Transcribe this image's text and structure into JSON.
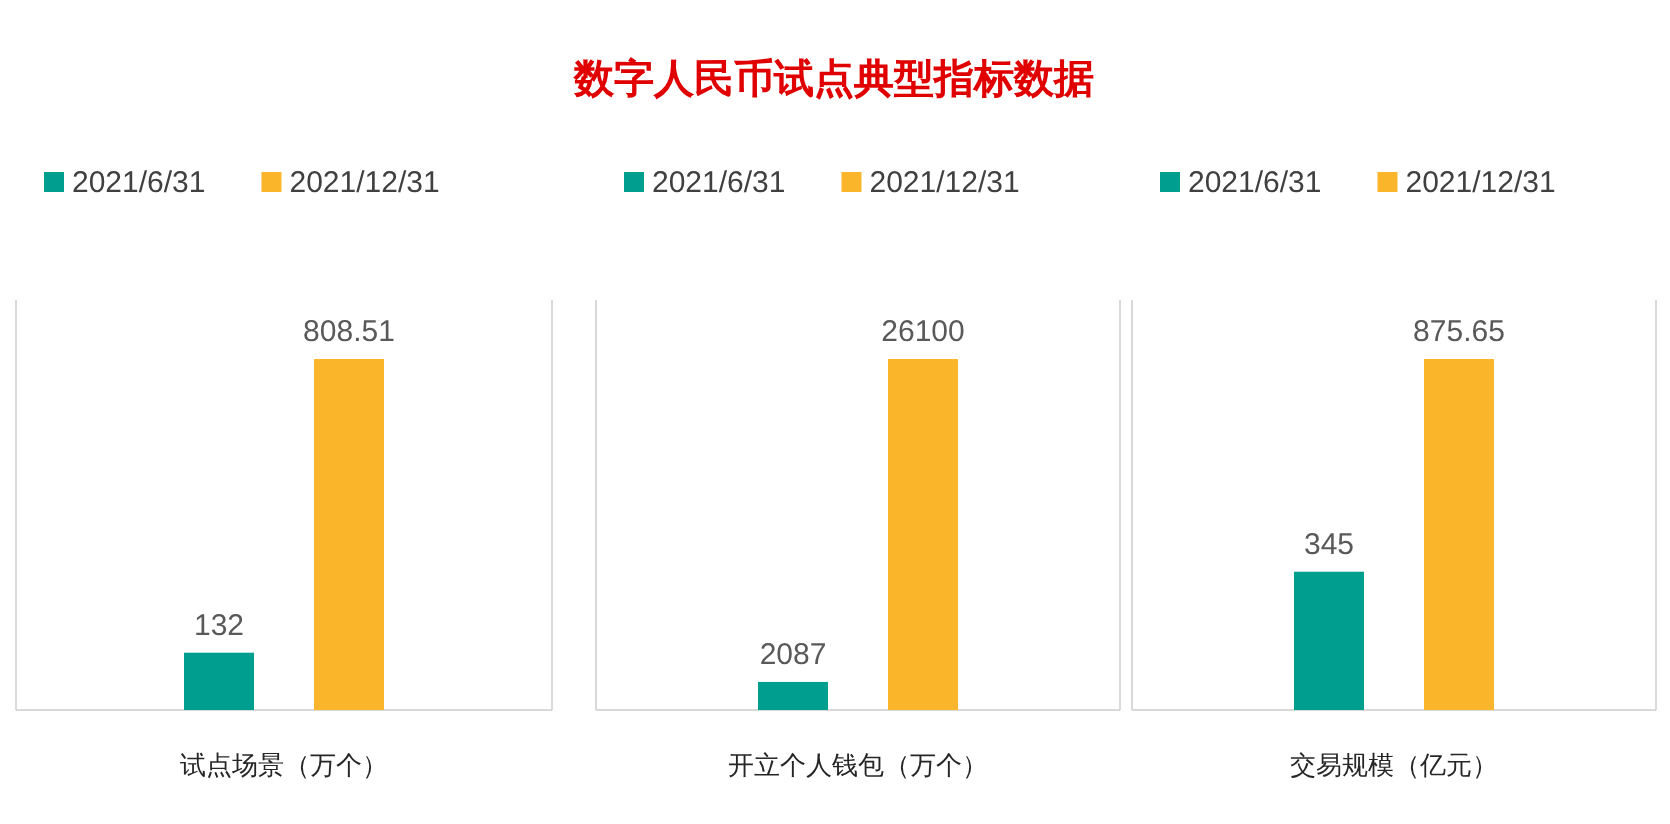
{
  "chart_data": [
    {
      "type": "bar",
      "categories": [
        "试点场景（万个）"
      ],
      "legend": "top",
      "data_labels": true,
      "series": [
        {
          "name": "2021/6/31",
          "color": "#009e8f",
          "values": [
            132
          ]
        },
        {
          "name": "2021/12/31",
          "color": "#fbb52a",
          "values": [
            808.51
          ]
        }
      ]
    },
    {
      "type": "bar",
      "title": "数字人民币试点典型指标数据",
      "categories": [
        "开立个人钱包（万个）"
      ],
      "legend": "top",
      "data_labels": true,
      "series": [
        {
          "name": "2021/6/31",
          "color": "#009e8f",
          "values": [
            2087
          ]
        },
        {
          "name": "2021/12/31",
          "color": "#fbb52a",
          "values": [
            26100
          ]
        }
      ]
    },
    {
      "type": "bar",
      "categories": [
        "交易规模（亿元）"
      ],
      "legend": "top",
      "data_labels": true,
      "series": [
        {
          "name": "2021/6/31",
          "color": "#009e8f",
          "values": [
            345
          ]
        },
        {
          "name": "2021/12/31",
          "color": "#fbb52a",
          "values": [
            875.65
          ]
        }
      ]
    }
  ]
}
